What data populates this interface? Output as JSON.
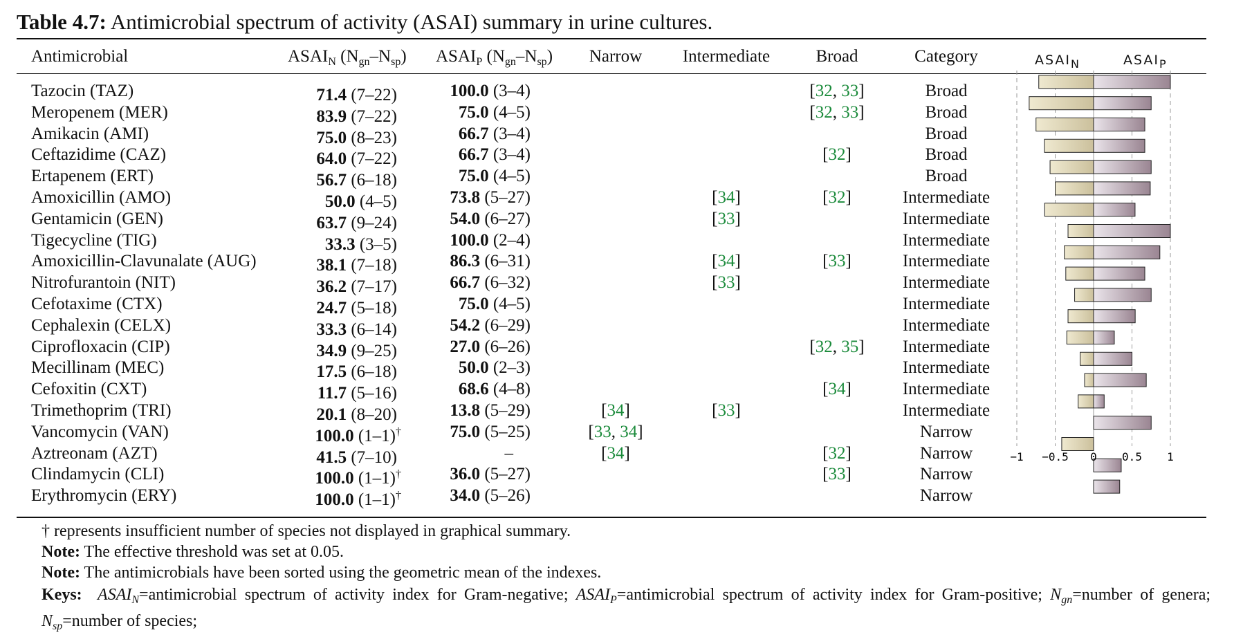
{
  "title": {
    "label": "Table 4.7:",
    "text": "Antimicrobial spectrum of activity (ASAI) summary in urine cultures."
  },
  "headers": {
    "antimicrobial": "Antimicrobial",
    "asai_n": "ASAI",
    "asai_n_sub": "N",
    "asai_n_paren": "(N",
    "gn": "gn",
    "dash": "–N",
    "sp": "sp",
    "close": ")",
    "asai_p": "ASAI",
    "asai_p_sub": "P",
    "narrow": "Narrow",
    "intermediate": "Intermediate",
    "broad": "Broad",
    "category": "Category",
    "plot_n": "ASAI",
    "plot_n_sub": "N",
    "plot_p": "ASAI",
    "plot_p_sub": "P"
  },
  "rows": [
    {
      "name": "Tazocin (TAZ)",
      "n_val": "71.4",
      "n_range": "(7–22)",
      "n_dag": "",
      "p_val": "100.0",
      "p_range": "(3–4)",
      "narrow": [],
      "inter": [],
      "broad": [
        "32",
        "33"
      ],
      "category": "Broad"
    },
    {
      "name": "Meropenem (MER)",
      "n_val": "83.9",
      "n_range": "(7–22)",
      "n_dag": "",
      "p_val": "75.0",
      "p_range": "(4–5)",
      "narrow": [],
      "inter": [],
      "broad": [
        "32",
        "33"
      ],
      "category": "Broad"
    },
    {
      "name": "Amikacin (AMI)",
      "n_val": "75.0",
      "n_range": "(8–23)",
      "n_dag": "",
      "p_val": "66.7",
      "p_range": "(3–4)",
      "narrow": [],
      "inter": [],
      "broad": [],
      "category": "Broad"
    },
    {
      "name": "Ceftazidime (CAZ)",
      "n_val": "64.0",
      "n_range": "(7–22)",
      "n_dag": "",
      "p_val": "66.7",
      "p_range": "(3–4)",
      "narrow": [],
      "inter": [],
      "broad": [
        "32"
      ],
      "category": "Broad"
    },
    {
      "name": "Ertapenem (ERT)",
      "n_val": "56.7",
      "n_range": "(6–18)",
      "n_dag": "",
      "p_val": "75.0",
      "p_range": "(4–5)",
      "narrow": [],
      "inter": [],
      "broad": [],
      "category": "Broad"
    },
    {
      "name": "Amoxicillin (AMO)",
      "n_val": "50.0",
      "n_range": "(4–5)",
      "n_dag": "",
      "p_val": "73.8",
      "p_range": "(5–27)",
      "narrow": [],
      "inter": [
        "34"
      ],
      "broad": [
        "32"
      ],
      "category": "Intermediate"
    },
    {
      "name": "Gentamicin (GEN)",
      "n_val": "63.7",
      "n_range": "(9–24)",
      "n_dag": "",
      "p_val": "54.0",
      "p_range": "(6–27)",
      "narrow": [],
      "inter": [
        "33"
      ],
      "broad": [],
      "category": "Intermediate"
    },
    {
      "name": "Tigecycline (TIG)",
      "n_val": "33.3",
      "n_range": "(3–5)",
      "n_dag": "",
      "p_val": "100.0",
      "p_range": "(2–4)",
      "narrow": [],
      "inter": [],
      "broad": [],
      "category": "Intermediate"
    },
    {
      "name": "Amoxicillin-Clavunalate (AUG)",
      "n_val": "38.1",
      "n_range": "(7–18)",
      "n_dag": "",
      "p_val": "86.3",
      "p_range": "(6–31)",
      "narrow": [],
      "inter": [
        "34"
      ],
      "broad": [
        "33"
      ],
      "category": "Intermediate"
    },
    {
      "name": "Nitrofurantoin (NIT)",
      "n_val": "36.2",
      "n_range": "(7–17)",
      "n_dag": "",
      "p_val": "66.7",
      "p_range": "(6–32)",
      "narrow": [],
      "inter": [
        "33"
      ],
      "broad": [],
      "category": "Intermediate"
    },
    {
      "name": "Cefotaxime (CTX)",
      "n_val": "24.7",
      "n_range": "(5–18)",
      "n_dag": "",
      "p_val": "75.0",
      "p_range": "(4–5)",
      "narrow": [],
      "inter": [],
      "broad": [],
      "category": "Intermediate"
    },
    {
      "name": "Cephalexin (CELX)",
      "n_val": "33.3",
      "n_range": "(6–14)",
      "n_dag": "",
      "p_val": "54.2",
      "p_range": "(6–29)",
      "narrow": [],
      "inter": [],
      "broad": [],
      "category": "Intermediate"
    },
    {
      "name": "Ciprofloxacin (CIP)",
      "n_val": "34.9",
      "n_range": "(9–25)",
      "n_dag": "",
      "p_val": "27.0",
      "p_range": "(6–26)",
      "narrow": [],
      "inter": [],
      "broad": [
        "32",
        "35"
      ],
      "category": "Intermediate"
    },
    {
      "name": "Mecillinam (MEC)",
      "n_val": "17.5",
      "n_range": "(6–18)",
      "n_dag": "",
      "p_val": "50.0",
      "p_range": "(2–3)",
      "narrow": [],
      "inter": [],
      "broad": [],
      "category": "Intermediate"
    },
    {
      "name": "Cefoxitin (CXT)",
      "n_val": "11.7",
      "n_range": "(5–16)",
      "n_dag": "",
      "p_val": "68.6",
      "p_range": "(4–8)",
      "narrow": [],
      "inter": [],
      "broad": [
        "34"
      ],
      "category": "Intermediate"
    },
    {
      "name": "Trimethoprim (TRI)",
      "n_val": "20.1",
      "n_range": "(8–20)",
      "n_dag": "",
      "p_val": "13.8",
      "p_range": "(5–29)",
      "narrow": [
        "34"
      ],
      "inter": [
        "33"
      ],
      "broad": [],
      "category": "Intermediate"
    },
    {
      "name": "Vancomycin (VAN)",
      "n_val": "100.0",
      "n_range": "(1–1)",
      "n_dag": "†",
      "p_val": "75.0",
      "p_range": "(5–25)",
      "narrow": [
        "33",
        "34"
      ],
      "inter": [],
      "broad": [],
      "category": "Narrow"
    },
    {
      "name": "Aztreonam (AZT)",
      "n_val": "41.5",
      "n_range": "(7–10)",
      "n_dag": "",
      "p_val": "–",
      "p_range": "",
      "narrow": [
        "34"
      ],
      "inter": [],
      "broad": [
        "32"
      ],
      "category": "Narrow"
    },
    {
      "name": "Clindamycin (CLI)",
      "n_val": "100.0",
      "n_range": "(1–1)",
      "n_dag": "†",
      "p_val": "36.0",
      "p_range": "(5–27)",
      "narrow": [],
      "inter": [],
      "broad": [
        "33"
      ],
      "category": "Narrow"
    },
    {
      "name": "Erythromycin (ERY)",
      "n_val": "100.0",
      "n_range": "(1–1)",
      "n_dag": "†",
      "p_val": "34.0",
      "p_range": "(5–26)",
      "narrow": [],
      "inter": [],
      "broad": [],
      "category": "Narrow"
    }
  ],
  "chart_data": {
    "type": "bar",
    "orientation": "horizontal-diverging",
    "xlim": [
      -1,
      1
    ],
    "xticks": [
      "−1",
      "−0.5",
      "0",
      "0.5",
      "1"
    ],
    "xtick_values": [
      -1,
      -0.5,
      0,
      0.5,
      1
    ],
    "grid": "dashed vertical",
    "series": [
      {
        "color_from": "#efe9d0",
        "color_to": "#cbc09c",
        "values": [
          -0.714,
          -0.839,
          -0.75,
          -0.64,
          -0.567,
          -0.5,
          -0.637,
          -0.333,
          -0.381,
          -0.362,
          -0.247,
          -0.333,
          -0.349,
          -0.175,
          -0.117,
          -0.201,
          null,
          -0.415,
          null,
          null
        ]
      },
      {
        "color_from": "#eae4ea",
        "color_to": "#9a8592",
        "values": [
          1.0,
          0.75,
          0.667,
          0.667,
          0.75,
          0.738,
          0.54,
          1.0,
          0.863,
          0.667,
          0.75,
          0.542,
          0.27,
          0.5,
          0.686,
          0.138,
          0.75,
          null,
          0.36,
          0.34
        ]
      }
    ]
  },
  "footnotes": {
    "dagger": "† represents insufficient number of species not displayed in graphical summary.",
    "note1_label": "Note:",
    "note1": "The effective threshold was set at 0.05.",
    "note2_label": "Note:",
    "note2": "The antimicrobials have been sorted using the geometric mean of the indexes.",
    "keys_label": "Keys:",
    "keys_n": "ASAI",
    "keys_n_sub": "N",
    "keys_n_def": "=antimicrobial spectrum of activity index for Gram-negative;",
    "keys_p": "ASAI",
    "keys_p_sub": "P",
    "keys_p_def": "=antimicrobial spectrum of activity index for Gram-positive;",
    "keys_ngn": "N",
    "keys_ngn_sub": "gn",
    "keys_ngn_def": "=number of genera;",
    "keys_nsp": "N",
    "keys_nsp_sub": "sp",
    "keys_nsp_def": "=number of species;"
  }
}
